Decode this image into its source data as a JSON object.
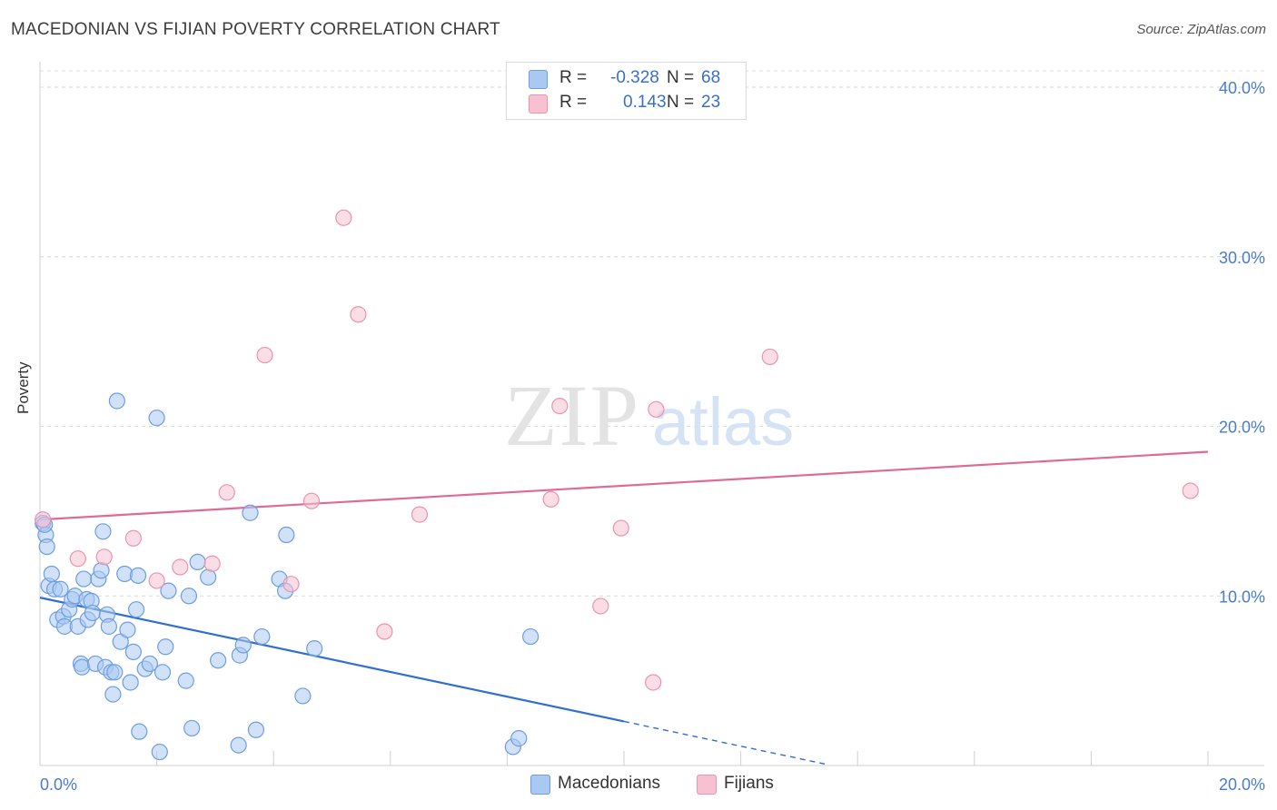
{
  "title": "MACEDONIAN VS FIJIAN POVERTY CORRELATION CHART",
  "source": "Source: ZipAtlas.com",
  "legend": {
    "rows": [
      {
        "r_label": "R =",
        "r_value": "-0.328",
        "n_label": "N =",
        "n_value": "68",
        "color": "#a9c8f2",
        "border": "#6d9ee0"
      },
      {
        "r_label": "R =",
        "r_value": "0.143",
        "n_label": "N =",
        "n_value": "23",
        "color": "#f7c1d1",
        "border": "#e994b0"
      }
    ]
  },
  "bottom_legend": [
    {
      "label": "Macedonians",
      "color": "#a9c8f2",
      "border": "#6d9ee0"
    },
    {
      "label": "Fijians",
      "color": "#f7c1d1",
      "border": "#e994b0"
    }
  ],
  "watermark": {
    "zip": "ZIP",
    "atlas": "atlas"
  },
  "chart_data": {
    "type": "scatter",
    "title": "MACEDONIAN VS FIJIAN POVERTY CORRELATION CHART",
    "xlabel": "",
    "ylabel": "Poverty",
    "xlim": [
      0,
      20
    ],
    "ylim": [
      0,
      41.5
    ],
    "x_tick_labels": [
      "0.0%",
      "20.0%"
    ],
    "y_ticks": [
      10,
      20,
      30,
      40
    ],
    "y_tick_labels": [
      "10.0%",
      "20.0%",
      "30.0%",
      "40.0%"
    ],
    "grid": true,
    "series": [
      {
        "name": "Macedonians",
        "color": "#6d9ee0",
        "fill": "#a9c8f2",
        "points": [
          [
            0.05,
            14.3
          ],
          [
            0.1,
            13.6
          ],
          [
            0.12,
            12.9
          ],
          [
            0.15,
            10.6
          ],
          [
            0.2,
            11.3
          ],
          [
            0.25,
            10.4
          ],
          [
            0.3,
            8.6
          ],
          [
            0.35,
            10.4
          ],
          [
            0.4,
            8.8
          ],
          [
            0.42,
            8.2
          ],
          [
            0.5,
            9.2
          ],
          [
            0.55,
            9.8
          ],
          [
            0.6,
            10.0
          ],
          [
            0.65,
            8.2
          ],
          [
            0.7,
            6.0
          ],
          [
            0.72,
            5.8
          ],
          [
            0.75,
            11.0
          ],
          [
            0.8,
            9.8
          ],
          [
            0.82,
            8.6
          ],
          [
            0.88,
            9.7
          ],
          [
            0.9,
            9.0
          ],
          [
            0.95,
            6.0
          ],
          [
            1.0,
            11.0
          ],
          [
            1.05,
            11.5
          ],
          [
            1.08,
            13.8
          ],
          [
            1.12,
            5.8
          ],
          [
            1.15,
            8.9
          ],
          [
            1.18,
            8.2
          ],
          [
            1.22,
            5.5
          ],
          [
            1.25,
            4.2
          ],
          [
            1.28,
            5.5
          ],
          [
            1.32,
            21.5
          ],
          [
            1.38,
            7.3
          ],
          [
            1.45,
            11.3
          ],
          [
            1.5,
            8.0
          ],
          [
            1.55,
            4.9
          ],
          [
            1.6,
            6.7
          ],
          [
            1.65,
            9.2
          ],
          [
            1.68,
            11.2
          ],
          [
            1.7,
            2.0
          ],
          [
            1.8,
            5.7
          ],
          [
            1.88,
            6.0
          ],
          [
            2.0,
            20.5
          ],
          [
            2.05,
            0.8
          ],
          [
            2.1,
            5.5
          ],
          [
            2.15,
            7.0
          ],
          [
            2.2,
            10.3
          ],
          [
            2.5,
            5.0
          ],
          [
            2.55,
            10.0
          ],
          [
            2.6,
            2.2
          ],
          [
            2.7,
            12.0
          ],
          [
            2.88,
            11.1
          ],
          [
            3.05,
            6.2
          ],
          [
            3.4,
            1.2
          ],
          [
            3.42,
            6.5
          ],
          [
            3.48,
            7.1
          ],
          [
            3.6,
            14.9
          ],
          [
            3.7,
            2.1
          ],
          [
            3.8,
            7.6
          ],
          [
            4.1,
            11.0
          ],
          [
            4.2,
            10.3
          ],
          [
            4.22,
            13.6
          ],
          [
            4.5,
            4.1
          ],
          [
            4.7,
            6.9
          ],
          [
            8.1,
            1.1
          ],
          [
            8.2,
            1.6
          ],
          [
            8.4,
            7.6
          ],
          [
            0.08,
            14.2
          ]
        ]
      },
      {
        "name": "Fijians",
        "color": "#e994b0",
        "fill": "#f7c1d1",
        "points": [
          [
            0.05,
            14.5
          ],
          [
            0.65,
            12.2
          ],
          [
            1.1,
            12.3
          ],
          [
            1.6,
            13.4
          ],
          [
            2.0,
            10.9
          ],
          [
            2.4,
            11.7
          ],
          [
            2.95,
            11.9
          ],
          [
            3.2,
            16.1
          ],
          [
            3.85,
            24.2
          ],
          [
            4.3,
            10.7
          ],
          [
            4.65,
            15.6
          ],
          [
            5.2,
            32.3
          ],
          [
            5.45,
            26.6
          ],
          [
            5.9,
            7.9
          ],
          [
            6.5,
            14.8
          ],
          [
            8.75,
            15.7
          ],
          [
            8.9,
            21.2
          ],
          [
            9.6,
            9.4
          ],
          [
            9.95,
            14.0
          ],
          [
            10.5,
            4.9
          ],
          [
            10.55,
            21.0
          ],
          [
            12.5,
            24.1
          ],
          [
            19.7,
            16.2
          ]
        ]
      }
    ],
    "trend_lines": [
      {
        "name": "Macedonians",
        "color": "#2f6fd0",
        "x0": 0,
        "y0": 9.9,
        "x1": 10,
        "y1": 2.6,
        "dash_to_x": 13.5
      },
      {
        "name": "Fijians",
        "color": "#e06a96",
        "x0": 0,
        "y0": 14.5,
        "x1": 20,
        "y1": 18.5
      }
    ]
  }
}
